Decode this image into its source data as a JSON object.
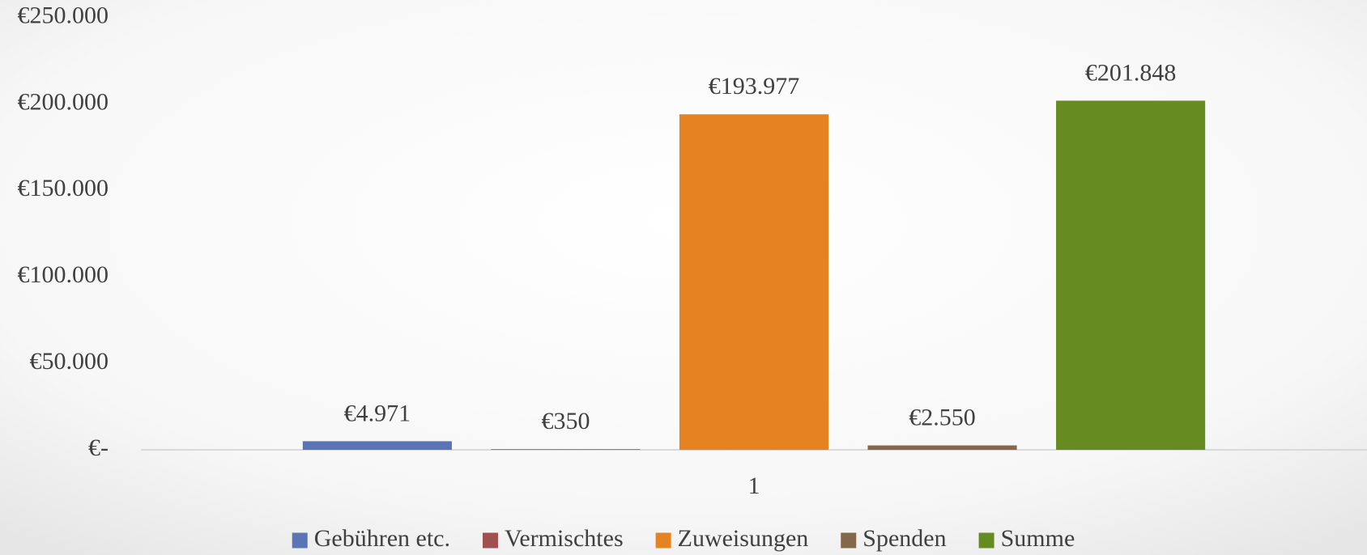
{
  "chart_data": {
    "type": "bar",
    "categories": [
      "1"
    ],
    "series": [
      {
        "name": "Gebühren etc.",
        "color": "#5b74b5",
        "values": [
          4971
        ],
        "value_labels": [
          "€4.971"
        ]
      },
      {
        "name": "Vermischtes",
        "color": "#a0504f",
        "values": [
          350
        ],
        "value_labels": [
          "€350"
        ]
      },
      {
        "name": "Zuweisungen",
        "color": "#e58322",
        "values": [
          193977
        ],
        "value_labels": [
          "€193.977"
        ]
      },
      {
        "name": "Spenden",
        "color": "#85674a",
        "values": [
          2550
        ],
        "value_labels": [
          "€2.550"
        ]
      },
      {
        "name": "Summe",
        "color": "#658b21",
        "values": [
          201848
        ],
        "value_labels": [
          "€201.848"
        ]
      }
    ],
    "ylim": [
      0,
      250000
    ],
    "yticks": [
      {
        "value": 0,
        "label": "€-"
      },
      {
        "value": 50000,
        "label": "€50.000"
      },
      {
        "value": 100000,
        "label": "€100.000"
      },
      {
        "value": 150000,
        "label": "€150.000"
      },
      {
        "value": 200000,
        "label": "€200.000"
      },
      {
        "value": 250000,
        "label": "€250.000"
      }
    ],
    "grid": false,
    "legend": "bottom"
  }
}
